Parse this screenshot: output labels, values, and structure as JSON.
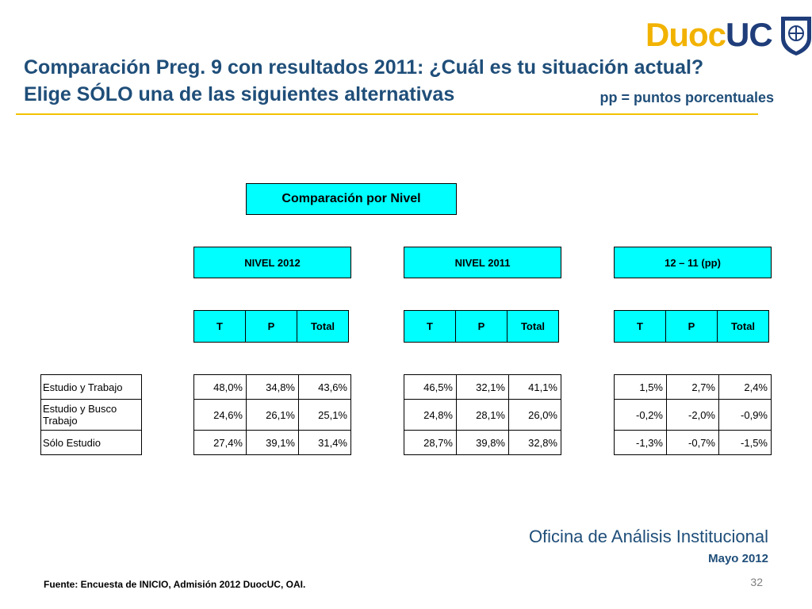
{
  "logo": {
    "duoc": "Duoc",
    "uc": "UC",
    "colors": {
      "duoc": "#f2b200",
      "uc": "#1f3d7a"
    }
  },
  "title": {
    "line1": "Comparación Preg. 9 con resultados 2011: ¿Cuál es tu situación actual?",
    "line2": "Elige SÓLO una de las siguientes alternativas"
  },
  "pp_note": "pp = puntos porcentuales",
  "table": {
    "main_header": "Comparación por Nivel",
    "groups": [
      {
        "header": "NIVEL 2012",
        "sub": [
          "T",
          "P",
          "Total"
        ],
        "rows": [
          [
            "48,0%",
            "34,8%",
            "43,6%"
          ],
          [
            "24,6%",
            "26,1%",
            "25,1%"
          ],
          [
            "27,4%",
            "39,1%",
            "31,4%"
          ]
        ]
      },
      {
        "header": "NIVEL 2011",
        "sub": [
          "T",
          "P",
          "Total"
        ],
        "rows": [
          [
            "46,5%",
            "32,1%",
            "41,1%"
          ],
          [
            "24,8%",
            "28,1%",
            "26,0%"
          ],
          [
            "28,7%",
            "39,8%",
            "32,8%"
          ]
        ]
      },
      {
        "header": "12 – 11 (pp)",
        "sub": [
          "T",
          "P",
          "Total"
        ],
        "rows": [
          [
            "1,5%",
            "2,7%",
            "2,4%"
          ],
          [
            "-0,2%",
            "-2,0%",
            "-0,9%"
          ],
          [
            "-1,3%",
            "-0,7%",
            "-1,5%"
          ]
        ]
      }
    ],
    "row_labels": [
      "Estudio y Trabajo",
      "Estudio y Busco Trabajo",
      "Sólo Estudio"
    ],
    "header_color": "#00ffff"
  },
  "footer": {
    "office": "Oficina de Análisis Institucional",
    "date": "Mayo 2012",
    "source": "Fuente: Encuesta de INICIO, Admisión 2012 DuocUC, OAI.",
    "page": "32"
  }
}
